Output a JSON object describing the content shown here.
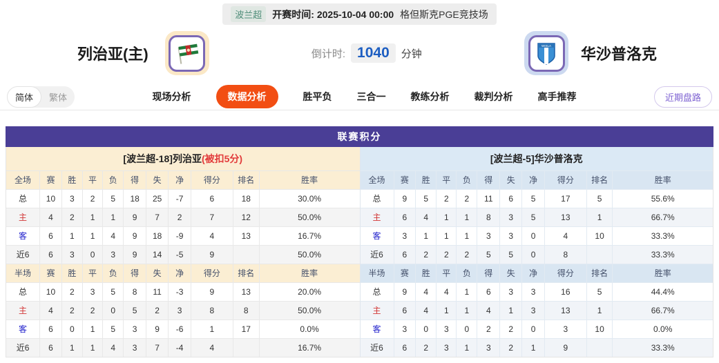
{
  "topbar": {
    "league": "波兰超",
    "kickoff_label": "开赛时间:",
    "kickoff_time": "2025-10-04 00:00",
    "venue": "格但斯克PGE竞技场"
  },
  "header": {
    "home_name": "列治亚(主)",
    "away_name": "华沙普洛克",
    "countdown_label": "倒计时:",
    "countdown_value": "1040",
    "countdown_unit": "分钟"
  },
  "nav": {
    "lang_simplified": "简体",
    "lang_traditional": "繁体",
    "tabs": [
      {
        "label": "现场分析",
        "active": false
      },
      {
        "label": "数据分析",
        "active": true
      },
      {
        "label": "胜平负",
        "active": false
      },
      {
        "label": "三合一",
        "active": false
      },
      {
        "label": "教练分析",
        "active": false
      },
      {
        "label": "裁判分析",
        "active": false
      },
      {
        "label": "高手推荐",
        "active": false
      }
    ],
    "recent_button": "近期盘路"
  },
  "standings": {
    "title": "联赛积分",
    "columns": [
      "赛",
      "胜",
      "平",
      "负",
      "得",
      "失",
      "净",
      "得分",
      "排名",
      "胜率"
    ],
    "left": {
      "team_header": "[波兰超-18]列治亚",
      "team_note": "(被扣5分)",
      "sections": [
        {
          "label": "全场",
          "rows": [
            {
              "label": "总",
              "type": "total",
              "values": [
                "10",
                "3",
                "2",
                "5",
                "18",
                "25",
                "-7",
                "6",
                "18",
                "30.0%"
              ]
            },
            {
              "label": "主",
              "type": "home",
              "values": [
                "4",
                "2",
                "1",
                "1",
                "9",
                "7",
                "2",
                "7",
                "12",
                "50.0%"
              ]
            },
            {
              "label": "客",
              "type": "away",
              "values": [
                "6",
                "1",
                "1",
                "4",
                "9",
                "18",
                "-9",
                "4",
                "13",
                "16.7%"
              ]
            },
            {
              "label": "近6",
              "type": "recent",
              "values": [
                "6",
                "3",
                "0",
                "3",
                "9",
                "14",
                "-5",
                "9",
                "",
                "50.0%"
              ]
            }
          ]
        },
        {
          "label": "半场",
          "rows": [
            {
              "label": "总",
              "type": "total",
              "values": [
                "10",
                "2",
                "3",
                "5",
                "8",
                "11",
                "-3",
                "9",
                "13",
                "20.0%"
              ]
            },
            {
              "label": "主",
              "type": "home",
              "values": [
                "4",
                "2",
                "2",
                "0",
                "5",
                "2",
                "3",
                "8",
                "8",
                "50.0%"
              ]
            },
            {
              "label": "客",
              "type": "away",
              "values": [
                "6",
                "0",
                "1",
                "5",
                "3",
                "9",
                "-6",
                "1",
                "17",
                "0.0%"
              ]
            },
            {
              "label": "近6",
              "type": "recent",
              "values": [
                "6",
                "1",
                "1",
                "4",
                "3",
                "7",
                "-4",
                "4",
                "",
                "16.7%"
              ]
            }
          ]
        }
      ]
    },
    "right": {
      "team_header": "[波兰超-5]华沙普洛克",
      "team_note": "",
      "sections": [
        {
          "label": "全场",
          "rows": [
            {
              "label": "总",
              "type": "total",
              "values": [
                "9",
                "5",
                "2",
                "2",
                "11",
                "6",
                "5",
                "17",
                "5",
                "55.6%"
              ]
            },
            {
              "label": "主",
              "type": "home",
              "values": [
                "6",
                "4",
                "1",
                "1",
                "8",
                "3",
                "5",
                "13",
                "1",
                "66.7%"
              ]
            },
            {
              "label": "客",
              "type": "away",
              "values": [
                "3",
                "1",
                "1",
                "1",
                "3",
                "3",
                "0",
                "4",
                "10",
                "33.3%"
              ]
            },
            {
              "label": "近6",
              "type": "recent",
              "values": [
                "6",
                "2",
                "2",
                "2",
                "5",
                "5",
                "0",
                "8",
                "",
                "33.3%"
              ]
            }
          ]
        },
        {
          "label": "半场",
          "rows": [
            {
              "label": "总",
              "type": "total",
              "values": [
                "9",
                "4",
                "4",
                "1",
                "6",
                "3",
                "3",
                "16",
                "5",
                "44.4%"
              ]
            },
            {
              "label": "主",
              "type": "home",
              "values": [
                "6",
                "4",
                "1",
                "1",
                "4",
                "1",
                "3",
                "13",
                "1",
                "66.7%"
              ]
            },
            {
              "label": "客",
              "type": "away",
              "values": [
                "3",
                "0",
                "3",
                "0",
                "2",
                "2",
                "0",
                "3",
                "10",
                "0.0%"
              ]
            },
            {
              "label": "近6",
              "type": "recent",
              "values": [
                "6",
                "2",
                "3",
                "1",
                "3",
                "2",
                "1",
                "9",
                "",
                "33.3%"
              ]
            }
          ]
        }
      ]
    }
  },
  "colors": {
    "accent_orange": "#f24e13",
    "title_purple": "#4a3e96",
    "logo_border_purple": "#7b68b5",
    "home_row_red": "#d23535",
    "away_row_blue": "#2222cc",
    "countdown_blue": "#1d5ec2",
    "note_red": "#e23b3b",
    "left_header_cream": "#fbeed3",
    "right_header_blue": "#dbe9f5",
    "recent_button_purple": "#7e62d2",
    "league_chip_teal": "#4f8d79"
  }
}
